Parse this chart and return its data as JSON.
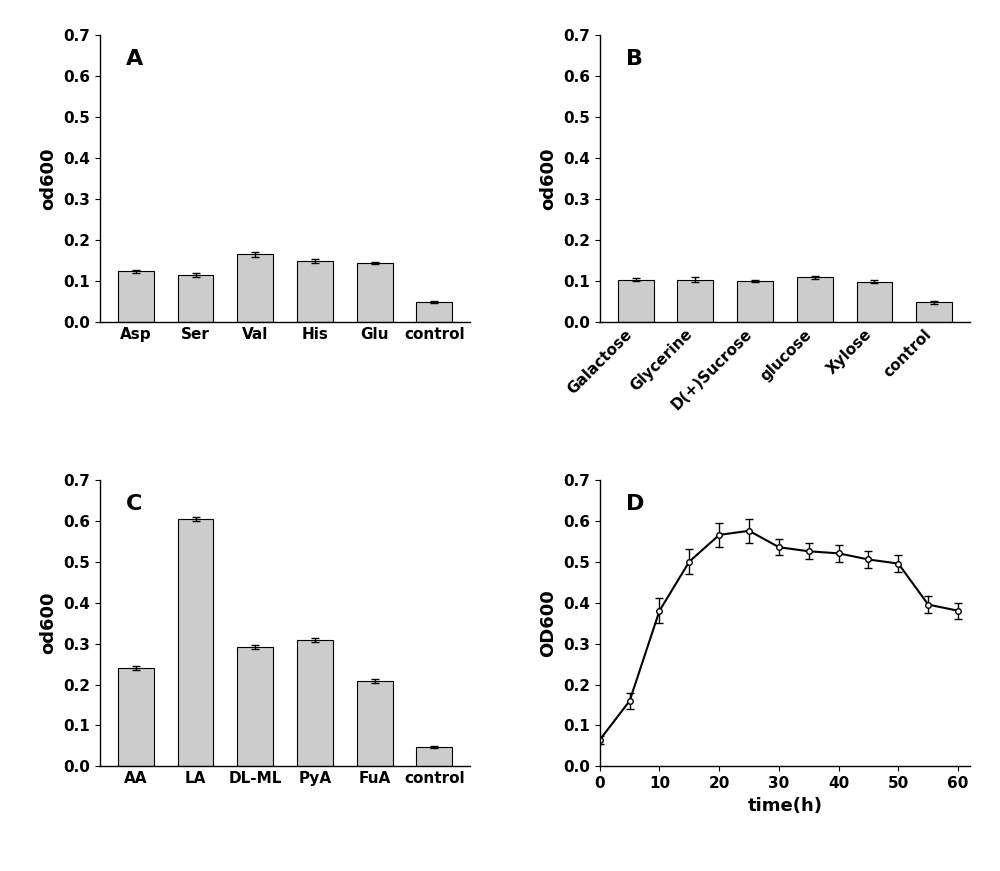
{
  "A": {
    "categories": [
      "Asp",
      "Ser",
      "Val",
      "His",
      "Glu",
      "control"
    ],
    "values": [
      0.123,
      0.113,
      0.165,
      0.148,
      0.143,
      0.048
    ],
    "errors": [
      0.004,
      0.005,
      0.006,
      0.004,
      0.003,
      0.003
    ],
    "ylabel": "od600",
    "ylim": [
      0,
      0.7
    ],
    "yticks": [
      0.0,
      0.1,
      0.2,
      0.3,
      0.4,
      0.5,
      0.6,
      0.7
    ],
    "label": "A",
    "rotate_x": false
  },
  "B": {
    "categories": [
      "Galactose",
      "Glycerine",
      "D(+)Sucrose",
      "glucose",
      "Xylose",
      "control"
    ],
    "values": [
      0.103,
      0.103,
      0.1,
      0.108,
      0.098,
      0.047
    ],
    "errors": [
      0.004,
      0.007,
      0.002,
      0.004,
      0.003,
      0.003
    ],
    "ylabel": "od600",
    "ylim": [
      0,
      0.7
    ],
    "yticks": [
      0.0,
      0.1,
      0.2,
      0.3,
      0.4,
      0.5,
      0.6,
      0.7
    ],
    "label": "B",
    "rotate_x": true
  },
  "C": {
    "categories": [
      "AA",
      "LA",
      "DL-ML",
      "PyA",
      "FuA",
      "control"
    ],
    "values": [
      0.24,
      0.603,
      0.292,
      0.308,
      0.208,
      0.048
    ],
    "errors": [
      0.005,
      0.005,
      0.005,
      0.005,
      0.005,
      0.003
    ],
    "ylabel": "od600",
    "ylim": [
      0,
      0.7
    ],
    "yticks": [
      0.0,
      0.1,
      0.2,
      0.3,
      0.4,
      0.5,
      0.6,
      0.7
    ],
    "label": "C",
    "rotate_x": false
  },
  "D": {
    "x": [
      0,
      5,
      10,
      15,
      20,
      25,
      30,
      35,
      40,
      45,
      50,
      55,
      60
    ],
    "y": [
      0.065,
      0.16,
      0.38,
      0.5,
      0.565,
      0.575,
      0.535,
      0.525,
      0.52,
      0.505,
      0.495,
      0.395,
      0.38
    ],
    "errors": [
      0.01,
      0.02,
      0.03,
      0.03,
      0.03,
      0.03,
      0.02,
      0.02,
      0.02,
      0.02,
      0.02,
      0.02,
      0.02
    ],
    "xlabel": "time(h)",
    "ylabel": "OD600",
    "ylim": [
      0,
      0.7
    ],
    "xlim": [
      0,
      62
    ],
    "yticks": [
      0.0,
      0.1,
      0.2,
      0.3,
      0.4,
      0.5,
      0.6,
      0.7
    ],
    "xticks": [
      0,
      10,
      20,
      30,
      40,
      50,
      60
    ],
    "label": "D"
  },
  "bar_color": "#cccccc",
  "bar_edgecolor": "#000000",
  "background_color": "#ffffff",
  "font_size_label": 13,
  "font_size_tick": 11,
  "font_size_panel": 16
}
